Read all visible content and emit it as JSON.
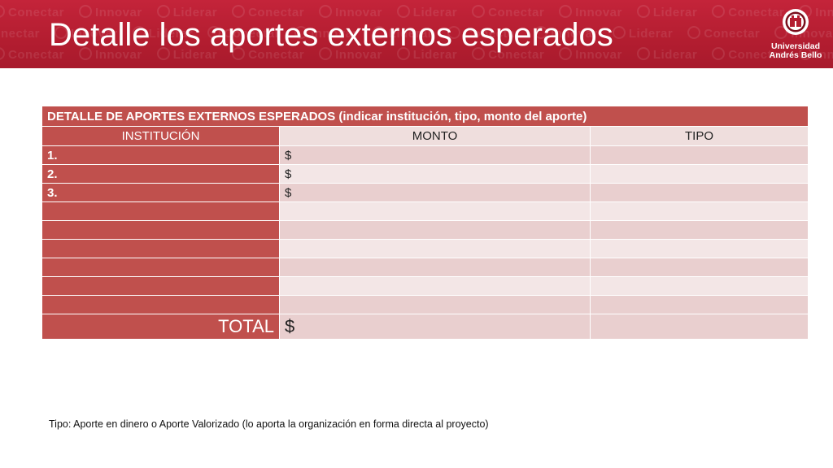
{
  "slide": {
    "title": "Detalle los aportes externos esperados",
    "watermark_words": [
      "Conectar",
      "Innovar",
      "Liderar",
      "Conectar",
      "Innovar",
      "Liderar",
      "Conectar",
      "Innovar",
      "Liderar",
      "Conectar",
      "Innovar"
    ],
    "colors": {
      "banner": "#b31d30",
      "header_red": "#c0504d",
      "cell_light": "#efdedd",
      "cell_mid": "#e9cfcf"
    }
  },
  "logo": {
    "icon": "university-shield-icon",
    "line1": "Universidad",
    "line2": "Andrés Bello"
  },
  "table": {
    "title": "DETALLE DE APORTES EXTERNOS ESPERADOS (indicar institución, tipo, monto del aporte)",
    "columns": [
      "INSTITUCIÓN",
      "MONTO",
      "TIPO"
    ],
    "rows": [
      [
        "1.",
        "$",
        ""
      ],
      [
        "2.",
        "$",
        ""
      ],
      [
        "3.",
        "$",
        ""
      ],
      [
        "",
        "",
        ""
      ],
      [
        "",
        "",
        ""
      ],
      [
        "",
        "",
        ""
      ],
      [
        "",
        "",
        ""
      ],
      [
        "",
        "",
        ""
      ],
      [
        "",
        "",
        ""
      ]
    ],
    "total": {
      "label": "TOTAL",
      "monto": "$",
      "tipo": ""
    }
  },
  "footnote": "Tipo: Aporte en dinero o Aporte Valorizado (lo aporta la organización en forma directa al proyecto)"
}
